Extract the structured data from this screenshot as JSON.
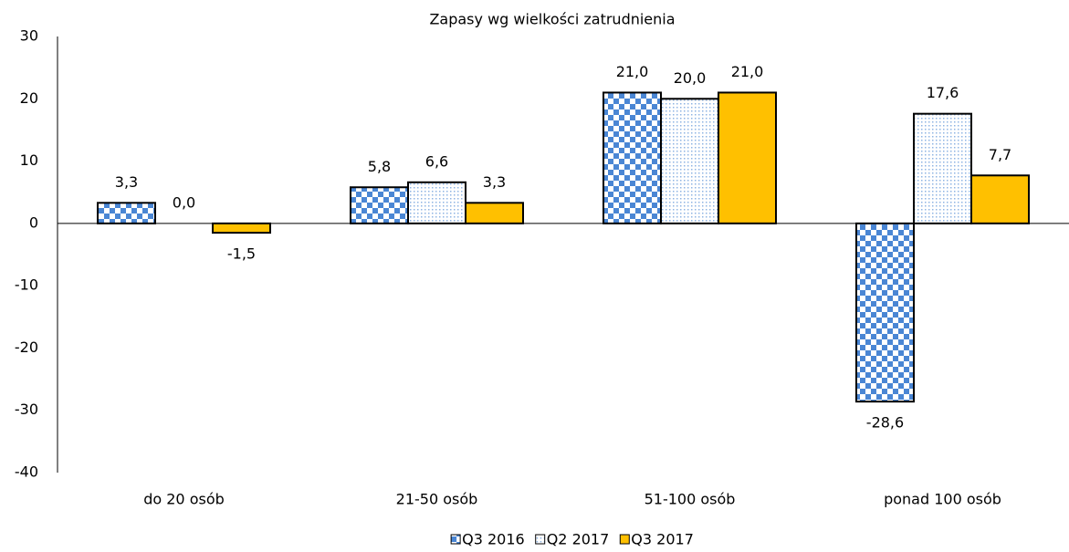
{
  "chart_data": {
    "type": "bar",
    "title": "Zapasy wg wielkości zatrudnienia",
    "categories": [
      "do 20 osób",
      "21-50 osób",
      "51-100 osób",
      "ponad 100 osób"
    ],
    "series": [
      {
        "name": "Q3 2016",
        "color": "#4a86d4",
        "pattern": "checker",
        "values": [
          3.3,
          5.8,
          21.0,
          -28.6
        ],
        "value_labels": [
          "3,3",
          "5,8",
          "21,0",
          "-28,6"
        ]
      },
      {
        "name": "Q2 2017",
        "color": "#8fb4e3",
        "pattern": "dots",
        "values": [
          0.0,
          6.6,
          20.0,
          17.6
        ],
        "value_labels": [
          "0,0",
          "6,6",
          "20,0",
          "17,6"
        ]
      },
      {
        "name": "Q3 2017",
        "color": "#ffc000",
        "pattern": "solid",
        "values": [
          -1.5,
          3.3,
          21.0,
          7.7
        ],
        "value_labels": [
          "-1,5",
          "3,3",
          "21,0",
          "7,7"
        ]
      }
    ],
    "ylim": [
      -40,
      30
    ],
    "yticks": [
      -40,
      -30,
      -20,
      -10,
      0,
      10,
      20,
      30
    ],
    "legend": "bottom"
  }
}
